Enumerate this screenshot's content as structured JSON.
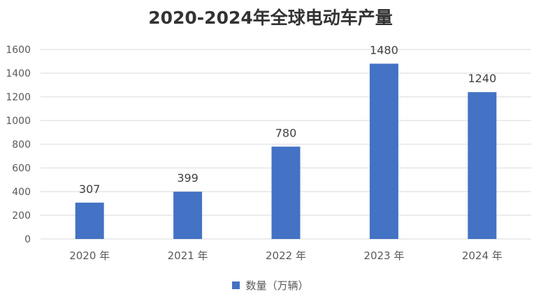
{
  "chart_data": {
    "type": "bar",
    "title": "2020-2024年全球电动车产量",
    "categories": [
      "2020 年",
      "2021 年",
      "2022 年",
      "2023 年",
      "2024 年"
    ],
    "series": [
      {
        "name": "数量（万辆）",
        "values": [
          307,
          399,
          780,
          1480,
          1240
        ]
      }
    ],
    "ylim": [
      0,
      1600
    ],
    "yticks": [
      "0",
      "200",
      "400",
      "600",
      "800",
      "1000",
      "1200",
      "1400",
      "1600"
    ],
    "data_labels": [
      "307",
      "399",
      "780",
      "1480",
      "1240"
    ],
    "grid": true,
    "legend": "bottom",
    "bar_color": "#4472C4",
    "grid_color": "#D9D9D9",
    "text_color": "#595959"
  }
}
